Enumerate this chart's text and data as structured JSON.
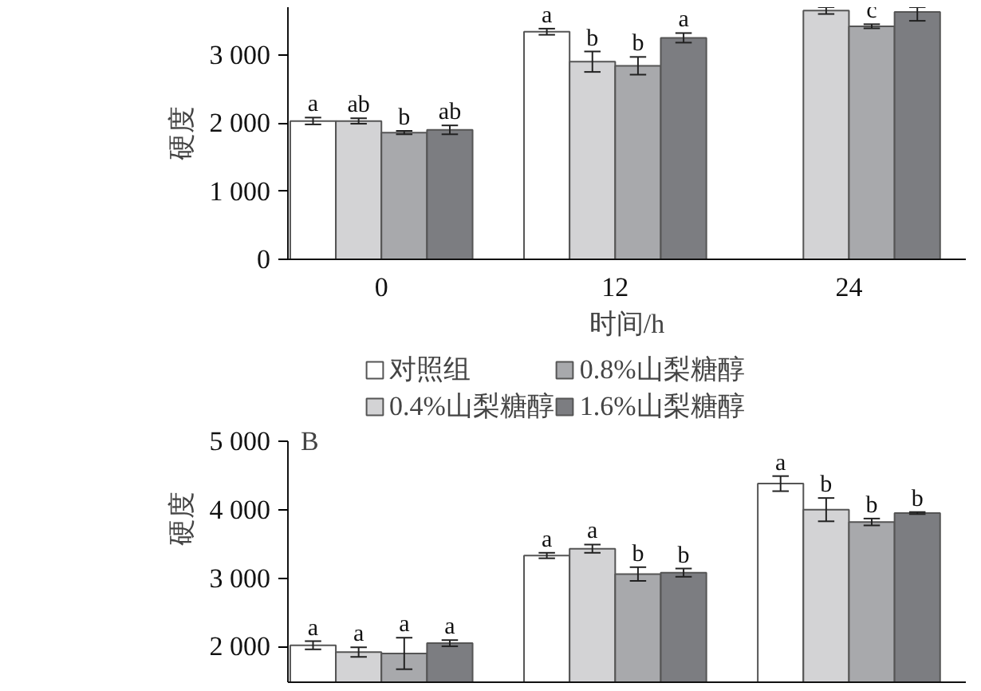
{
  "chart_data": [
    {
      "type": "bar",
      "categories": [
        "0",
        "12",
        "24"
      ],
      "xlabel": "时间/h",
      "ylabel": "硬度",
      "ylim": [
        0,
        3700
      ],
      "yticks": [
        0,
        {
          "value": 1000,
          "label": "1 000"
        },
        {
          "value": 2000,
          "label": "2 000"
        },
        {
          "value": 3000,
          "label": "3 000"
        }
      ],
      "grid": false,
      "series": [
        {
          "color": "#ffffff",
          "values": [
            2030,
            3340,
            null
          ],
          "errors": [
            50,
            45,
            null
          ],
          "value_labels": [
            "a",
            "a",
            null
          ]
        },
        {
          "color": "#d3d3d5",
          "values": [
            2030,
            2900,
            3650
          ],
          "errors": [
            40,
            150,
            50
          ],
          "value_labels": [
            "ab",
            "b",
            null
          ]
        },
        {
          "color": "#a8a9ac",
          "values": [
            1860,
            2840,
            3420
          ],
          "errors": [
            25,
            130,
            30
          ],
          "value_labels": [
            "b",
            "b",
            "c"
          ]
        },
        {
          "color": "#7c7d81",
          "values": [
            1900,
            3250,
            3630
          ],
          "errors": [
            65,
            70,
            [
              3500,
              3700
            ]
          ],
          "value_labels": [
            "ab",
            "a",
            null
          ]
        }
      ]
    },
    {
      "type": "bar",
      "categories": [
        null,
        null,
        null
      ],
      "ylabel": "硬度",
      "ylim": [
        1480,
        5000
      ],
      "yticks": [
        {
          "value": 2000,
          "label": "2 000"
        },
        {
          "value": 3000,
          "label": "3 000"
        },
        {
          "value": 4000,
          "label": "4 000"
        },
        {
          "value": 5000,
          "label": "5 000"
        }
      ],
      "tick_labels": "y",
      "grid": false,
      "legend": "top",
      "annotations": [
        "B"
      ],
      "series": [
        {
          "name": "对照组",
          "color": "#ffffff",
          "values": [
            2020,
            3330,
            4380
          ],
          "errors": [
            60,
            40,
            110
          ],
          "value_labels": [
            "a",
            "a",
            "a"
          ]
        },
        {
          "name": "0.4%山梨糖醇",
          "color": "#d3d3d5",
          "values": [
            1920,
            3430,
            4000
          ],
          "errors": [
            70,
            60,
            170
          ],
          "value_labels": [
            "a",
            "a",
            "b"
          ]
        },
        {
          "name": "0.8%山梨糖醇",
          "color": "#a8a9ac",
          "values": [
            1900,
            3060,
            3820
          ],
          "errors": [
            230,
            100,
            50
          ],
          "value_labels": [
            "a",
            "b",
            "b"
          ]
        },
        {
          "name": "1.6%山梨糖醇",
          "color": "#7c7d81",
          "values": [
            2050,
            3080,
            3950
          ],
          "errors": [
            45,
            60,
            15
          ],
          "value_labels": [
            "a",
            "b",
            "b"
          ]
        }
      ]
    }
  ]
}
